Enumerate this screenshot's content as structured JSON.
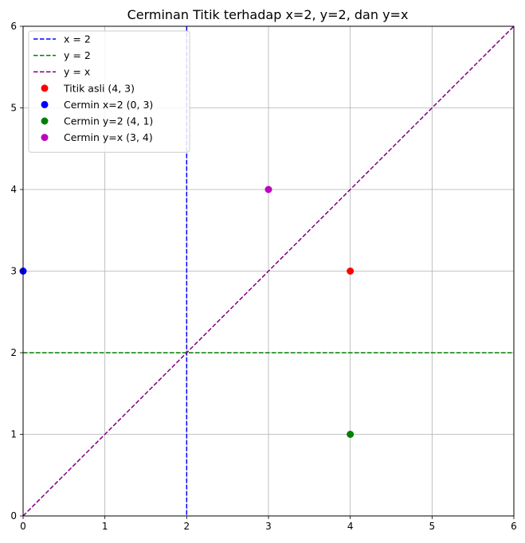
{
  "chart_data": {
    "type": "scatter",
    "title": "Cerminan Titik terhadap x=2, y=2, dan y=x",
    "xlabel": "",
    "ylabel": "",
    "xlim": [
      0,
      6
    ],
    "ylim": [
      0,
      6
    ],
    "xticks": [
      0,
      1,
      2,
      3,
      4,
      5,
      6
    ],
    "yticks": [
      0,
      1,
      2,
      3,
      4,
      5,
      6
    ],
    "grid": true,
    "legend_position": "top-left",
    "lines": [
      {
        "name": "x = 2",
        "kind": "vertical",
        "x": 2,
        "color": "#0000ff",
        "style": "dashed"
      },
      {
        "name": "y = 2",
        "kind": "horizontal",
        "y": 2,
        "color": "#008000",
        "style": "dashed"
      },
      {
        "name": "y = x",
        "kind": "diagonal",
        "from": [
          0,
          0
        ],
        "to": [
          6,
          6
        ],
        "color": "#800080",
        "style": "dashed"
      }
    ],
    "points": [
      {
        "name": "Titik asli (4, 3)",
        "x": 4,
        "y": 3,
        "color": "#ff0000"
      },
      {
        "name": "Cermin x=2 (0, 3)",
        "x": 0,
        "y": 3,
        "color": "#0000ff"
      },
      {
        "name": "Cermin y=2 (4, 1)",
        "x": 4,
        "y": 1,
        "color": "#008000"
      },
      {
        "name": "Cermin y=x (3, 4)",
        "x": 3,
        "y": 4,
        "color": "#bf00bf"
      }
    ]
  }
}
